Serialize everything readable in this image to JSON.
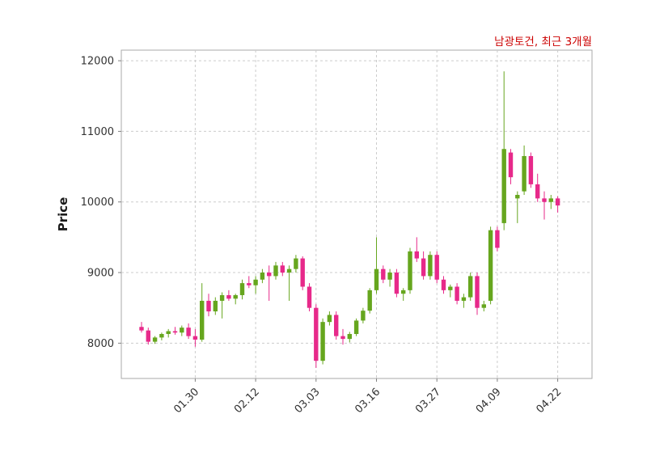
{
  "header": {
    "title": "남광토건, 최근 3개월"
  },
  "colors": {
    "up": "#66a61e",
    "down": "#e7298a",
    "title": "#cc0000",
    "grid": "#cccccc",
    "border": "#aaaaaa",
    "tick_text": "#333333",
    "tick_mark": "#808080",
    "background": "#ffffff"
  },
  "chart_data": {
    "type": "candlestick",
    "title": "남광토건, 최근 3개월",
    "xlabel": "",
    "ylabel": "Price",
    "ylim": [
      7500,
      12150
    ],
    "y_ticks": [
      8000,
      9000,
      10000,
      11000,
      12000
    ],
    "x_tick_labels": [
      "01.30",
      "02.12",
      "03.03",
      "03.16",
      "03.27",
      "04.09",
      "04.22"
    ],
    "x_tick_indices": [
      8,
      17,
      26,
      35,
      44,
      53,
      62
    ],
    "grid": "dashed",
    "legend": "none",
    "ohlc_format": [
      "open",
      "high",
      "low",
      "close"
    ],
    "candles": [
      [
        8230,
        8300,
        8150,
        8180
      ],
      [
        8180,
        8220,
        7980,
        8020
      ],
      [
        8020,
        8100,
        7990,
        8080
      ],
      [
        8080,
        8150,
        8040,
        8130
      ],
      [
        8130,
        8200,
        8080,
        8170
      ],
      [
        8170,
        8230,
        8120,
        8150
      ],
      [
        8150,
        8250,
        8100,
        8220
      ],
      [
        8220,
        8280,
        8060,
        8100
      ],
      [
        8100,
        8200,
        7950,
        8050
      ],
      [
        8050,
        8850,
        8020,
        8600
      ],
      [
        8600,
        8700,
        8380,
        8450
      ],
      [
        8450,
        8650,
        8400,
        8600
      ],
      [
        8600,
        8720,
        8350,
        8680
      ],
      [
        8680,
        8750,
        8600,
        8630
      ],
      [
        8630,
        8700,
        8550,
        8680
      ],
      [
        8680,
        8900,
        8620,
        8850
      ],
      [
        8850,
        8950,
        8780,
        8820
      ],
      [
        8820,
        8950,
        8700,
        8900
      ],
      [
        8900,
        9050,
        8850,
        9000
      ],
      [
        9000,
        9100,
        8600,
        8950
      ],
      [
        8950,
        9150,
        8900,
        9100
      ],
      [
        9100,
        9150,
        8950,
        9000
      ],
      [
        9000,
        9100,
        8600,
        9050
      ],
      [
        9050,
        9250,
        9000,
        9200
      ],
      [
        9200,
        9230,
        8750,
        8800
      ],
      [
        8800,
        8850,
        8450,
        8500
      ],
      [
        8500,
        8550,
        7650,
        7750
      ],
      [
        7750,
        8350,
        7700,
        8300
      ],
      [
        8300,
        8450,
        8250,
        8400
      ],
      [
        8400,
        8450,
        8050,
        8100
      ],
      [
        8100,
        8200,
        7980,
        8060
      ],
      [
        8060,
        8160,
        8010,
        8130
      ],
      [
        8130,
        8350,
        8100,
        8320
      ],
      [
        8320,
        8500,
        8280,
        8460
      ],
      [
        8460,
        8780,
        8420,
        8750
      ],
      [
        8750,
        9500,
        8700,
        9050
      ],
      [
        9050,
        9100,
        8850,
        8900
      ],
      [
        8900,
        9050,
        8800,
        9000
      ],
      [
        9000,
        9050,
        8650,
        8700
      ],
      [
        8700,
        8780,
        8600,
        8750
      ],
      [
        8750,
        9350,
        8700,
        9300
      ],
      [
        9300,
        9500,
        9150,
        9200
      ],
      [
        9200,
        9300,
        8900,
        8950
      ],
      [
        8950,
        9300,
        8900,
        9250
      ],
      [
        9250,
        9300,
        8850,
        8900
      ],
      [
        8900,
        8950,
        8700,
        8750
      ],
      [
        8750,
        8830,
        8650,
        8800
      ],
      [
        8800,
        8850,
        8550,
        8600
      ],
      [
        8600,
        8700,
        8500,
        8650
      ],
      [
        8650,
        9000,
        8600,
        8950
      ],
      [
        8950,
        9000,
        8400,
        8500
      ],
      [
        8500,
        8600,
        8450,
        8550
      ],
      [
        8600,
        9650,
        8550,
        9600
      ],
      [
        9600,
        9650,
        9300,
        9350
      ],
      [
        9700,
        11850,
        9600,
        10750
      ],
      [
        10700,
        10750,
        10250,
        10350
      ],
      [
        10050,
        10150,
        9700,
        10100
      ],
      [
        10150,
        10800,
        10100,
        10650
      ],
      [
        10650,
        10700,
        10200,
        10250
      ],
      [
        10250,
        10400,
        10000,
        10050
      ],
      [
        10050,
        10150,
        9750,
        10000
      ],
      [
        10000,
        10100,
        9900,
        10050
      ],
      [
        10050,
        10080,
        9850,
        9950
      ]
    ]
  }
}
